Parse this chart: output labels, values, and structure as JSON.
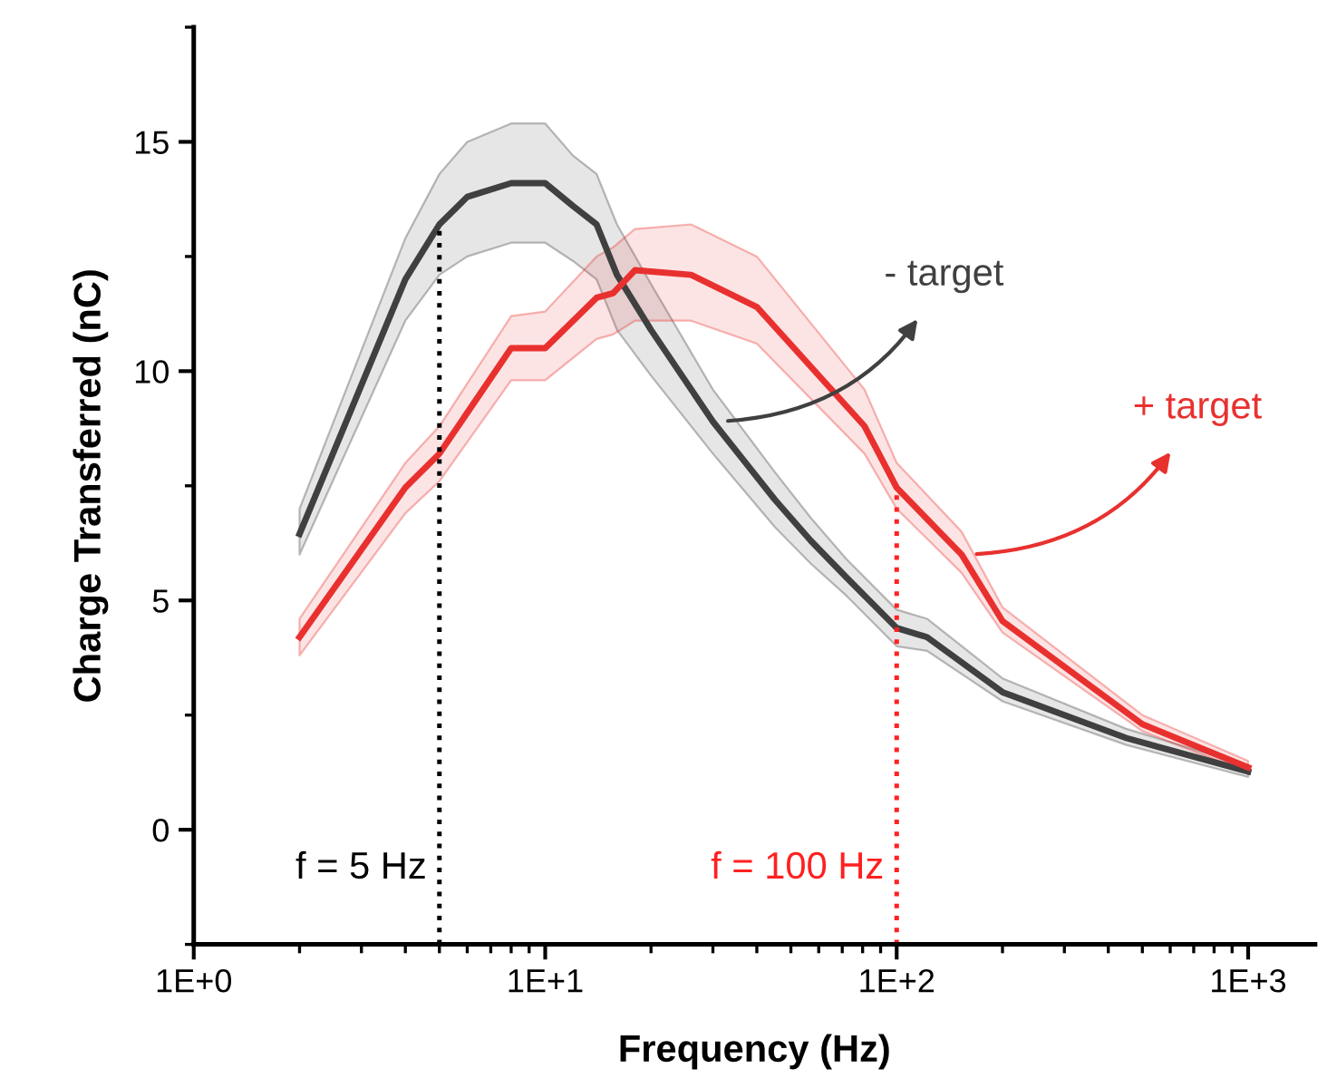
{
  "chart_data": {
    "type": "line",
    "xlabel": "Frequency (Hz)",
    "ylabel": "Charge Transferred (nC)",
    "log": "x",
    "xlim": [
      1,
      1550
    ],
    "xticks": [
      {
        "value": 1,
        "label": "1E+0"
      },
      {
        "value": 10,
        "label": "1E+1"
      },
      {
        "value": 100,
        "label": "1E+2"
      },
      {
        "value": 1000,
        "label": "1E+3"
      }
    ],
    "ylim": [
      -2.5,
      17.5
    ],
    "yticks": [
      0,
      5,
      10,
      15
    ],
    "series": [
      {
        "color": "#404040",
        "x": [
          2,
          4,
          5,
          6,
          8,
          10,
          12,
          14,
          16,
          20,
          30,
          45,
          57,
          72,
          100,
          122,
          200,
          450,
          1000
        ],
        "values": [
          6.45,
          12.0,
          13.2,
          13.8,
          14.1,
          14.1,
          13.6,
          13.2,
          12.1,
          10.9,
          8.9,
          7.2,
          6.3,
          5.5,
          4.4,
          4.2,
          3.0,
          2.0,
          1.27
        ],
        "lower": [
          6.0,
          11.1,
          12.1,
          12.5,
          12.8,
          12.8,
          12.4,
          12.0,
          10.9,
          9.9,
          8.2,
          6.6,
          5.8,
          5.1,
          4.0,
          3.9,
          2.8,
          1.85,
          1.15
        ],
        "upper": [
          7.0,
          12.9,
          14.3,
          15.0,
          15.4,
          15.4,
          14.7,
          14.3,
          13.2,
          11.9,
          9.6,
          7.8,
          6.8,
          5.9,
          4.8,
          4.6,
          3.3,
          2.2,
          1.4
        ]
      },
      {
        "color": "#e8312f",
        "x": [
          2,
          4,
          5,
          8,
          10,
          14,
          15.6,
          18,
          26,
          40,
          81,
          100,
          153,
          200,
          500,
          1000
        ],
        "values": [
          4.2,
          7.46,
          8.2,
          10.5,
          10.5,
          11.6,
          11.7,
          12.2,
          12.1,
          11.4,
          8.8,
          7.46,
          6.0,
          4.55,
          2.3,
          1.36
        ],
        "lower": [
          3.8,
          6.9,
          7.6,
          9.8,
          9.8,
          10.7,
          10.8,
          11.1,
          11.1,
          10.6,
          8.2,
          7.0,
          5.6,
          4.3,
          2.15,
          1.25
        ],
        "upper": [
          4.6,
          8.0,
          8.8,
          11.2,
          11.3,
          12.5,
          12.7,
          13.1,
          13.2,
          12.5,
          9.6,
          8.0,
          6.5,
          4.85,
          2.5,
          1.5
        ]
      }
    ],
    "annotations": [
      {
        "text": "- target",
        "x": 30,
        "y": 8.9
      },
      {
        "text": "+ target",
        "x": 153,
        "y": 6.0
      }
    ],
    "ref_lines": [
      {
        "axis": "x",
        "value": 5,
        "label": "f = 5 Hz",
        "color": "#000000",
        "line_style": "dotted"
      },
      {
        "axis": "x",
        "value": 100,
        "label": "f = 100 Hz",
        "color": "#ff2020",
        "line_style": "dotted"
      }
    ],
    "grid": false,
    "legend": false,
    "marker": "none",
    "line_style": "solid"
  }
}
